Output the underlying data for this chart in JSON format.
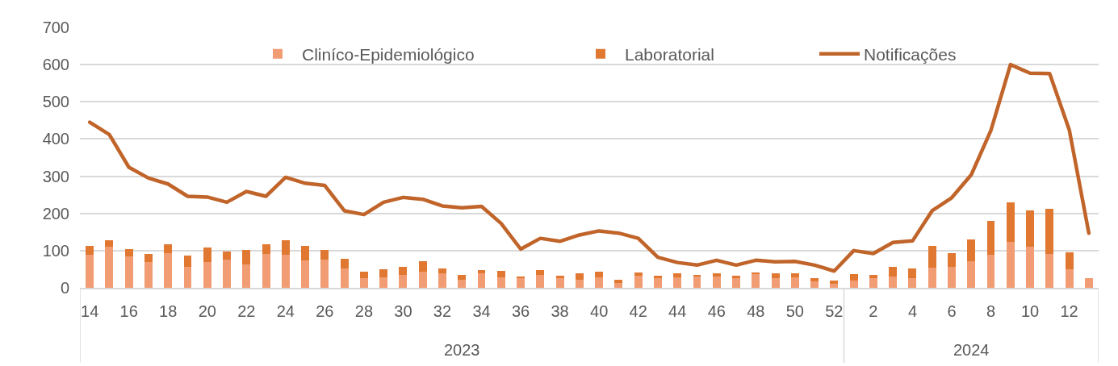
{
  "chart_data": {
    "type": "bar",
    "stacked": true,
    "categories": [
      "14",
      null,
      "16",
      null,
      "18",
      null,
      "20",
      null,
      "22",
      null,
      "24",
      null,
      "26",
      null,
      "28",
      null,
      "30",
      null,
      "32",
      null,
      "34",
      null,
      "36",
      null,
      "38",
      null,
      "40",
      null,
      "42",
      null,
      "44",
      null,
      "46",
      null,
      "48",
      null,
      "50",
      null,
      "52",
      null,
      "2",
      null,
      "4",
      null,
      "6",
      null,
      "8",
      null,
      "10",
      null,
      "12",
      null
    ],
    "series": [
      {
        "name": "Cliníco-Epidemiológico",
        "color": "#f19c73",
        "values": [
          89,
          110,
          85,
          69,
          94,
          56,
          69,
          76,
          63,
          90,
          88,
          73,
          76,
          52,
          25,
          29,
          35,
          44,
          40,
          22,
          40,
          28,
          27,
          35,
          27,
          22,
          29,
          13,
          32,
          26,
          28,
          31,
          30,
          26,
          37,
          26,
          28,
          17,
          11,
          20,
          26,
          30,
          25,
          54,
          56,
          72,
          89,
          124,
          110,
          90,
          50,
          26
        ]
      },
      {
        "name": "Laboratorial",
        "color": "#e07832",
        "values": [
          24,
          17,
          18,
          21,
          23,
          31,
          39,
          22,
          38,
          28,
          40,
          40,
          25,
          27,
          18,
          21,
          21,
          28,
          13,
          13,
          7,
          17,
          4,
          12,
          6,
          18,
          14,
          9,
          9,
          7,
          12,
          2,
          8,
          7,
          4,
          14,
          10,
          8,
          8,
          17,
          9,
          26,
          28,
          59,
          37,
          57,
          90,
          105,
          97,
          122,
          45,
          0
        ]
      },
      {
        "name": "Notificações",
        "type": "line",
        "color": "#c0642a",
        "values": [
          445,
          412,
          324,
          295,
          279,
          246,
          244,
          230,
          259,
          246,
          297,
          281,
          275,
          207,
          197,
          230,
          243,
          238,
          220,
          215,
          219,
          173,
          104,
          133,
          125,
          142,
          153,
          147,
          133,
          82,
          68,
          61,
          74,
          61,
          74,
          70,
          71,
          61,
          45,
          100,
          92,
          122,
          126,
          207,
          242,
          304,
          423,
          600,
          577,
          576,
          425,
          147
        ]
      }
    ],
    "ylim": [
      0,
      700
    ],
    "yticks": [
      0,
      100,
      200,
      300,
      400,
      500,
      600,
      700
    ],
    "grid": "y",
    "legend": "top",
    "line_style": "solid",
    "annotations": [
      "2023",
      "2024"
    ]
  }
}
